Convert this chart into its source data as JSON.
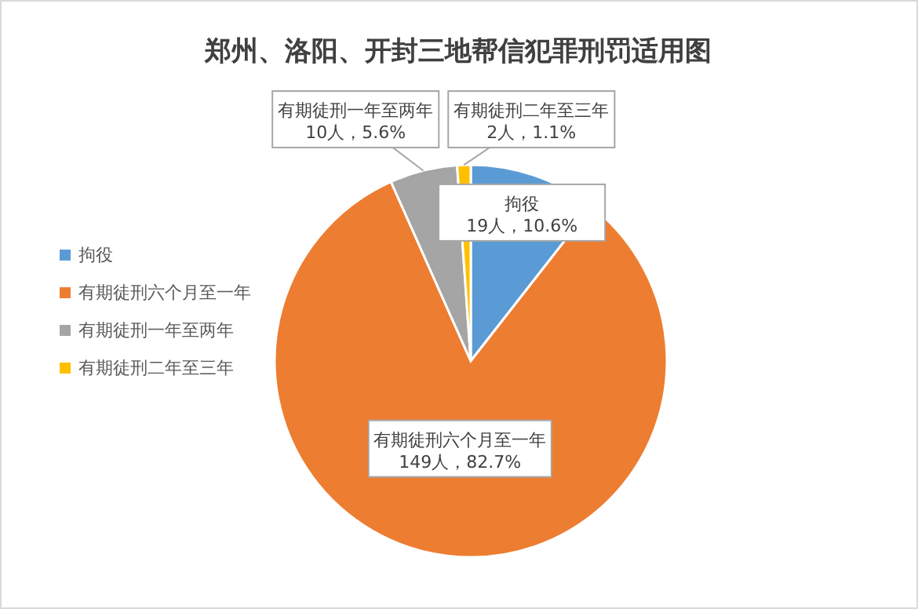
{
  "chart_data": {
    "type": "pie",
    "title": "郑州、洛阳、开封三地帮信犯罪刑罚适用图",
    "categories": [
      "拘役",
      "有期徒刑六个月至一年",
      "有期徒刑一年至两年",
      "有期徒刑二年至三年"
    ],
    "values": [
      19,
      149,
      10,
      2
    ],
    "colors": [
      "#5b9bd5",
      "#ed7d31",
      "#a5a5a5",
      "#ffc000"
    ],
    "value_labels": [
      "19人，10.6%",
      "149人，82.7%",
      "10人，5.6%",
      "2人，1.1%"
    ],
    "legend": "left"
  }
}
